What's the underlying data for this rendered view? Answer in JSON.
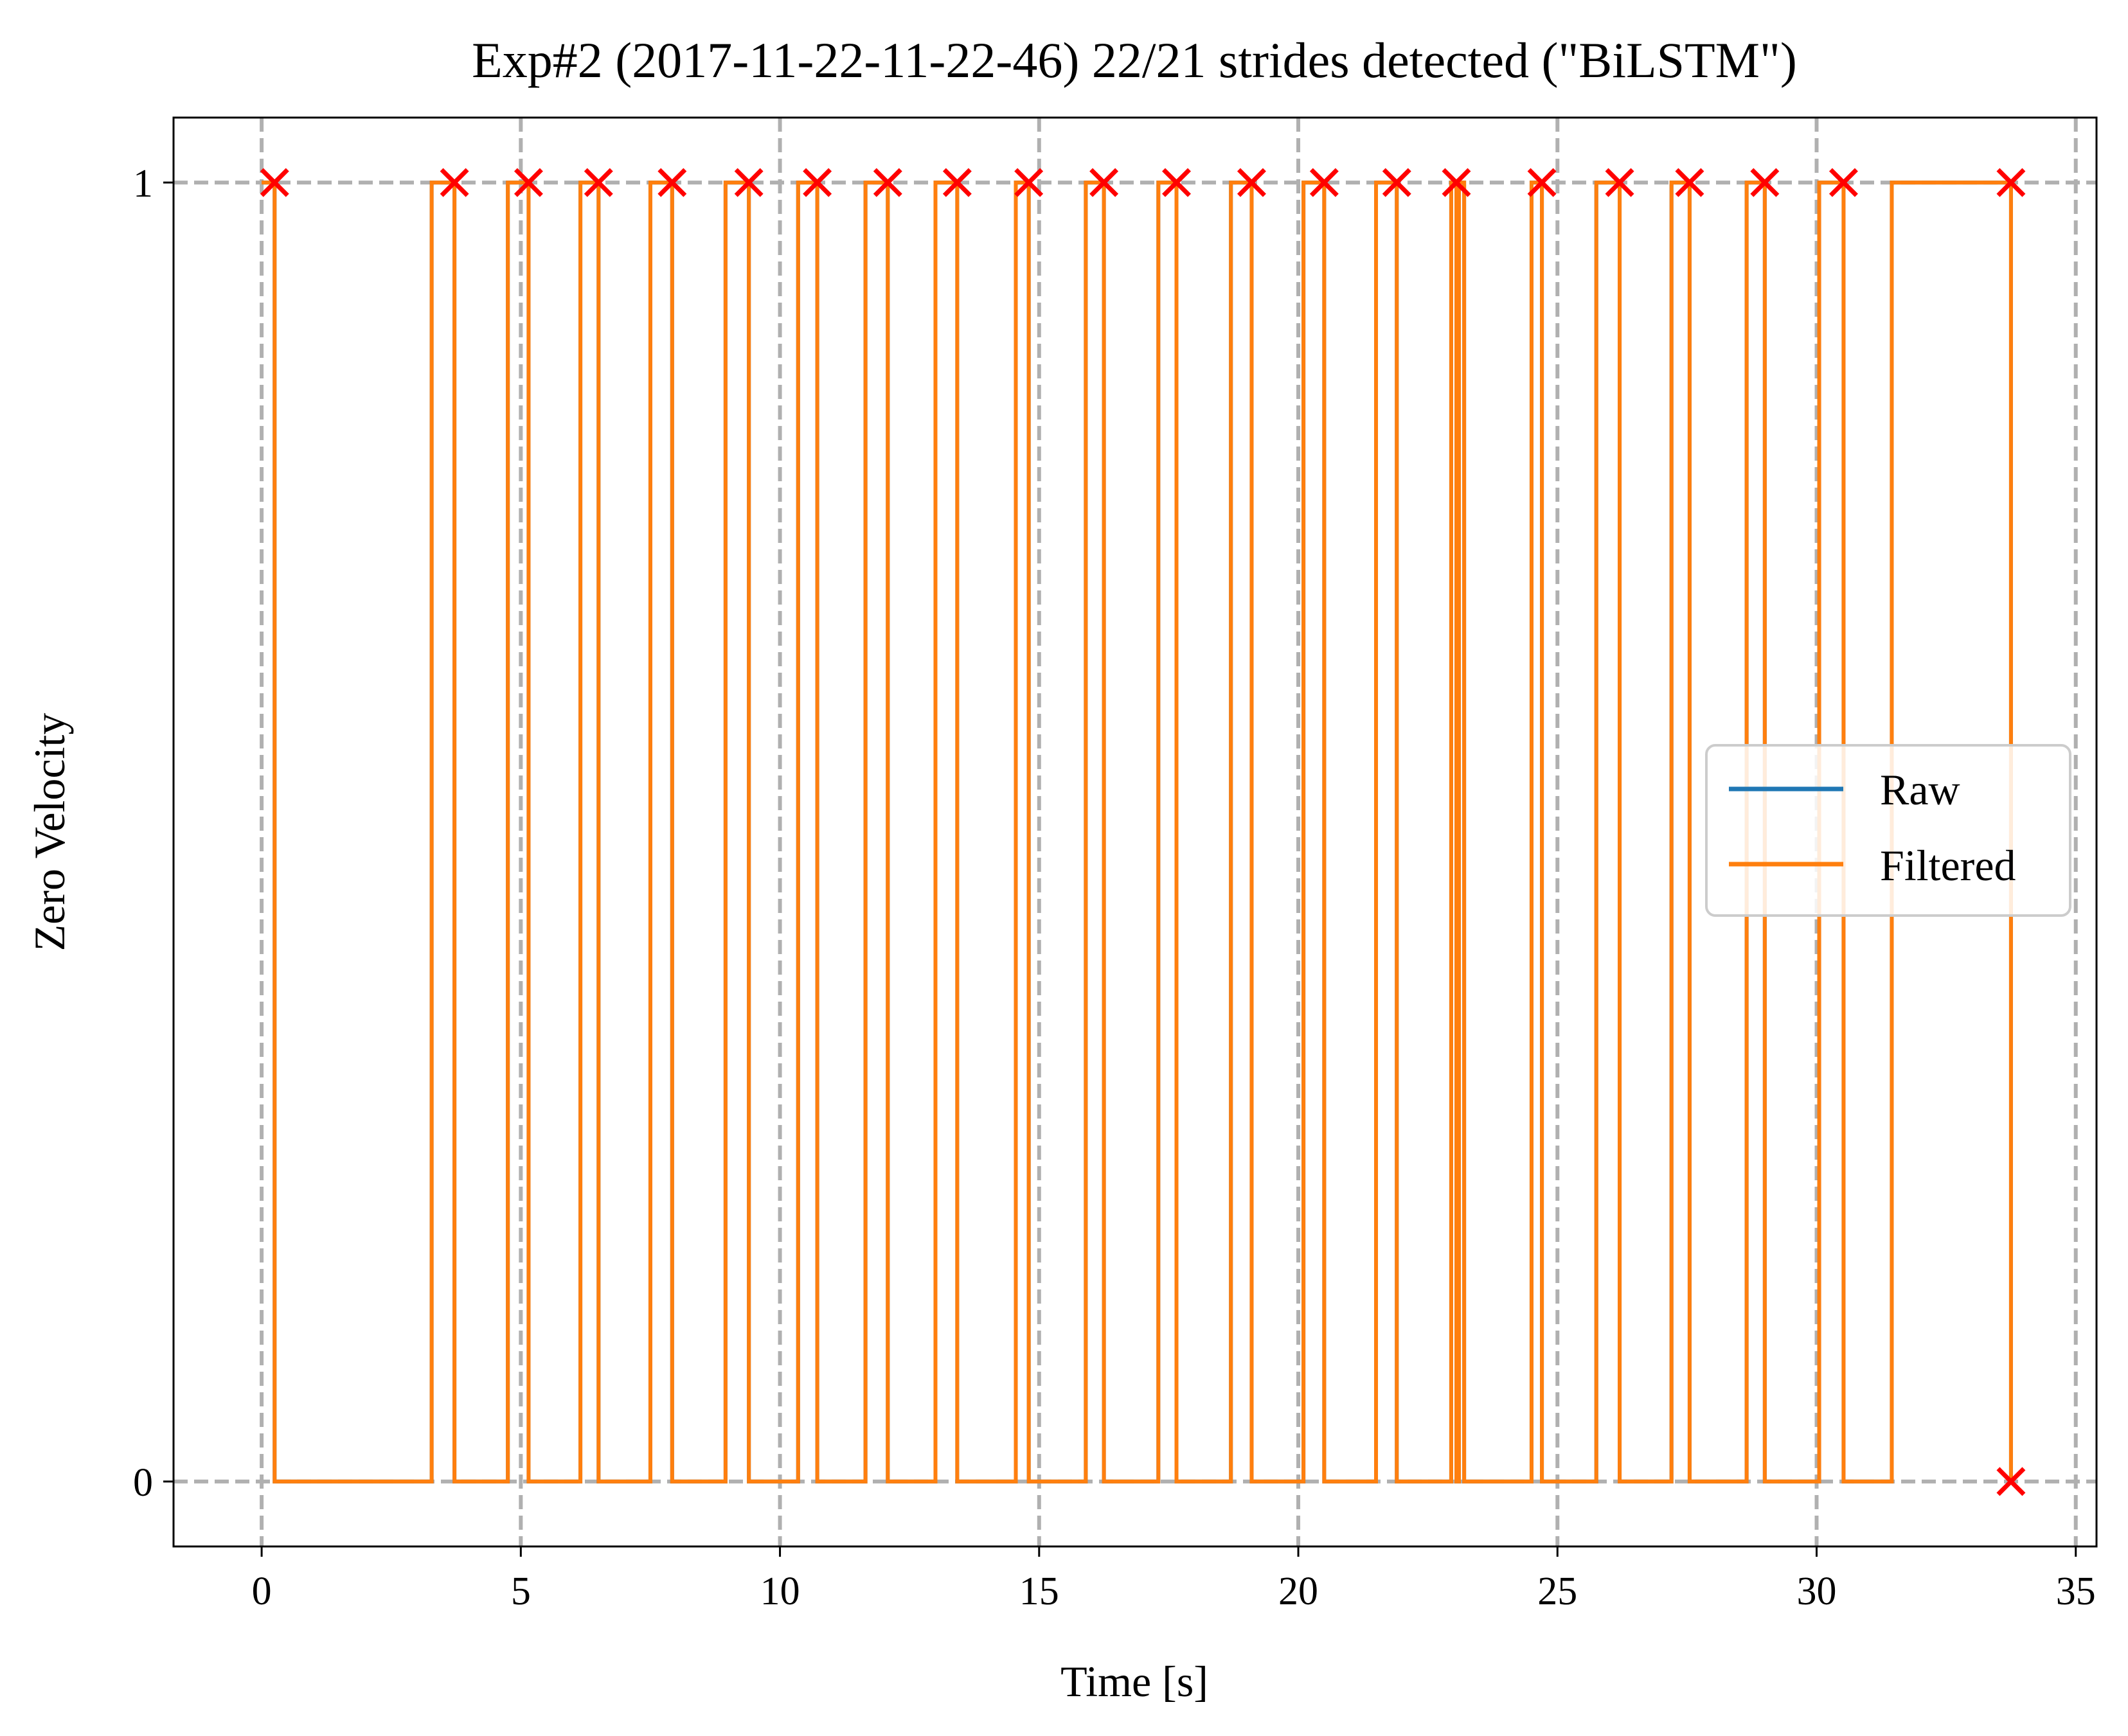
{
  "chart_data": {
    "type": "line",
    "title": "Exp#2 (2017-11-22-11-22-46) 22/21 strides detected (\"BiLSTM\")",
    "xlabel": "Time [s]",
    "ylabel": "Zero Velocity",
    "xlim": [
      -1.7,
      35.4
    ],
    "ylim": [
      -0.05,
      1.05
    ],
    "xticks": [
      0,
      5,
      10,
      15,
      20,
      25,
      30,
      35
    ],
    "yticks": [
      0,
      1
    ],
    "grid": true,
    "legend_position": "center-right",
    "colors": {
      "raw": "#1f77b4",
      "filtered": "#ff7f0e",
      "markers": "#ff0000",
      "grid": "#b0b0b0"
    },
    "series": [
      {
        "name": "Raw",
        "color": "#1f77b4",
        "steps": [
          [
            0.0,
            1
          ],
          [
            0.25,
            0
          ],
          [
            3.28,
            1
          ],
          [
            3.72,
            0
          ],
          [
            4.75,
            1
          ],
          [
            5.15,
            0
          ],
          [
            6.15,
            1
          ],
          [
            6.5,
            0
          ],
          [
            7.5,
            1
          ],
          [
            7.92,
            0
          ],
          [
            8.95,
            1
          ],
          [
            9.4,
            0
          ],
          [
            10.35,
            1
          ],
          [
            10.72,
            0
          ],
          [
            11.65,
            1
          ],
          [
            12.08,
            0
          ],
          [
            13.0,
            1
          ],
          [
            13.42,
            0
          ],
          [
            14.55,
            1
          ],
          [
            14.8,
            0
          ],
          [
            15.9,
            1
          ],
          [
            16.25,
            0
          ],
          [
            17.3,
            1
          ],
          [
            17.65,
            0
          ],
          [
            18.7,
            1
          ],
          [
            19.1,
            0
          ],
          [
            20.1,
            1
          ],
          [
            20.5,
            0
          ],
          [
            21.5,
            1
          ],
          [
            21.9,
            0
          ],
          [
            22.95,
            1
          ],
          [
            23.05,
            0
          ],
          [
            23.1,
            1
          ],
          [
            23.2,
            0
          ],
          [
            24.5,
            1
          ],
          [
            24.7,
            0
          ],
          [
            25.75,
            1
          ],
          [
            26.2,
            0
          ],
          [
            27.2,
            1
          ],
          [
            27.55,
            0
          ],
          [
            28.65,
            1
          ],
          [
            29.0,
            0
          ],
          [
            30.05,
            1
          ],
          [
            30.52,
            0
          ],
          [
            31.45,
            1
          ],
          [
            33.75,
            0
          ],
          [
            33.8,
            0
          ]
        ]
      },
      {
        "name": "Filtered",
        "color": "#ff7f0e",
        "steps": [
          [
            0.0,
            1
          ],
          [
            0.25,
            0
          ],
          [
            3.28,
            1
          ],
          [
            3.72,
            0
          ],
          [
            4.75,
            1
          ],
          [
            5.15,
            0
          ],
          [
            6.15,
            1
          ],
          [
            6.5,
            0
          ],
          [
            7.5,
            1
          ],
          [
            7.92,
            0
          ],
          [
            8.95,
            1
          ],
          [
            9.4,
            0
          ],
          [
            10.35,
            1
          ],
          [
            10.72,
            0
          ],
          [
            11.65,
            1
          ],
          [
            12.08,
            0
          ],
          [
            13.0,
            1
          ],
          [
            13.42,
            0
          ],
          [
            14.55,
            1
          ],
          [
            14.8,
            0
          ],
          [
            15.9,
            1
          ],
          [
            16.25,
            0
          ],
          [
            17.3,
            1
          ],
          [
            17.65,
            0
          ],
          [
            18.7,
            1
          ],
          [
            19.1,
            0
          ],
          [
            20.1,
            1
          ],
          [
            20.5,
            0
          ],
          [
            21.5,
            1
          ],
          [
            21.9,
            0
          ],
          [
            22.95,
            1
          ],
          [
            23.05,
            0
          ],
          [
            23.1,
            1
          ],
          [
            23.2,
            0
          ],
          [
            24.5,
            1
          ],
          [
            24.7,
            0
          ],
          [
            25.75,
            1
          ],
          [
            26.2,
            0
          ],
          [
            27.2,
            1
          ],
          [
            27.55,
            0
          ],
          [
            28.65,
            1
          ],
          [
            29.0,
            0
          ],
          [
            30.05,
            1
          ],
          [
            30.52,
            0
          ],
          [
            31.45,
            1
          ],
          [
            33.75,
            0
          ],
          [
            33.8,
            0
          ]
        ]
      }
    ],
    "markers": {
      "symbol": "x",
      "color": "#ff0000",
      "points": [
        [
          0.25,
          1
        ],
        [
          3.72,
          1
        ],
        [
          5.15,
          1
        ],
        [
          6.5,
          1
        ],
        [
          7.92,
          1
        ],
        [
          9.4,
          1
        ],
        [
          10.72,
          1
        ],
        [
          12.08,
          1
        ],
        [
          13.42,
          1
        ],
        [
          14.8,
          1
        ],
        [
          16.25,
          1
        ],
        [
          17.65,
          1
        ],
        [
          19.1,
          1
        ],
        [
          20.5,
          1
        ],
        [
          21.9,
          1
        ],
        [
          23.05,
          1
        ],
        [
          24.7,
          1
        ],
        [
          26.2,
          1
        ],
        [
          27.55,
          1
        ],
        [
          29.0,
          1
        ],
        [
          30.52,
          1
        ],
        [
          33.75,
          1
        ],
        [
          33.75,
          0
        ]
      ]
    }
  }
}
